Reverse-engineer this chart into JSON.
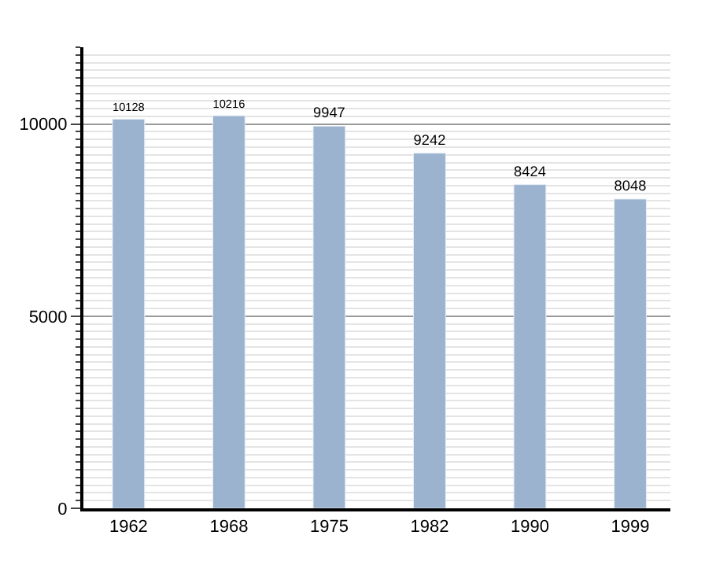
{
  "chart_data": {
    "type": "bar",
    "categories": [
      "1962",
      "1968",
      "1975",
      "1982",
      "1990",
      "1999"
    ],
    "values": [
      10128,
      10216,
      9947,
      9242,
      8424,
      8048
    ],
    "color": "#9bb3ce",
    "data_labels": true,
    "ylim": [
      0,
      12000
    ],
    "yticks": [
      0,
      5000,
      10000
    ],
    "grid": "y"
  }
}
